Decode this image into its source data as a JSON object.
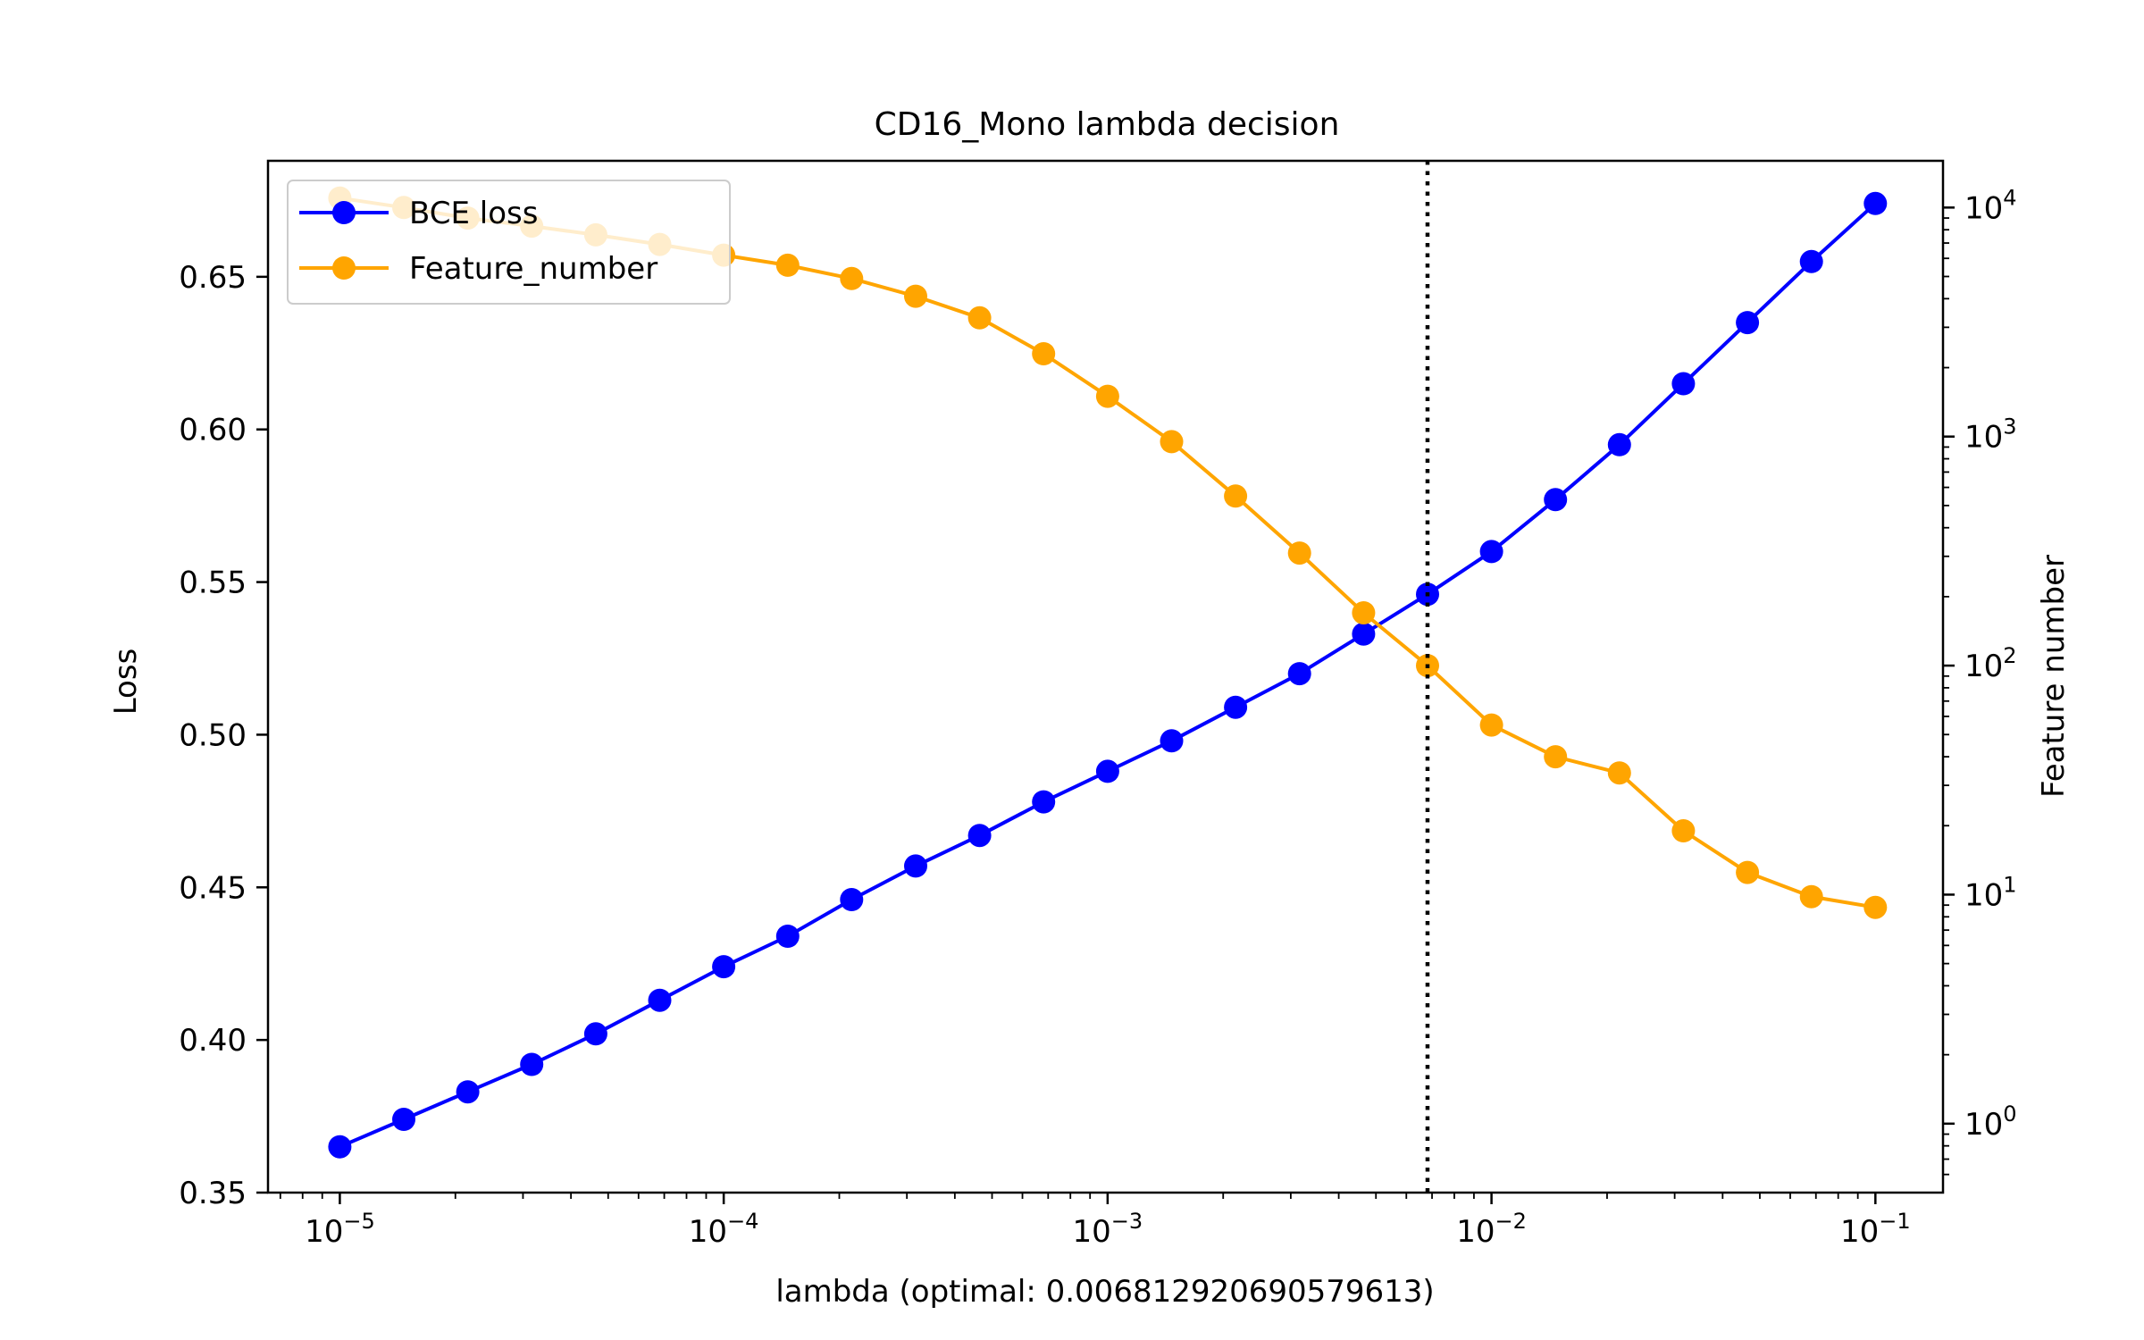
{
  "chart_data": {
    "type": "line",
    "title": "CD16_Mono lambda decision",
    "xlabel": "lambda (optimal: 0.006812920690579613)",
    "ylabel": "Loss",
    "y2label": "Feature number",
    "xscale": "log",
    "y2scale": "log",
    "xlim": [
      6.5e-06,
      0.15
    ],
    "ylim": [
      0.35,
      0.688
    ],
    "y2lim": [
      0.5,
      16000
    ],
    "xticks": [
      1e-05,
      0.0001,
      0.001,
      0.01,
      0.1
    ],
    "xtick_labels": [
      {
        "base": "10",
        "exp": "−5"
      },
      {
        "base": "10",
        "exp": "−4"
      },
      {
        "base": "10",
        "exp": "−3"
      },
      {
        "base": "10",
        "exp": "−2"
      },
      {
        "base": "10",
        "exp": "−1"
      }
    ],
    "yticks": [
      0.35,
      0.4,
      0.45,
      0.5,
      0.55,
      0.6,
      0.65
    ],
    "ytick_labels": [
      "0.35",
      "0.40",
      "0.45",
      "0.50",
      "0.55",
      "0.60",
      "0.65"
    ],
    "y2ticks": [
      1,
      10,
      100,
      1000,
      10000
    ],
    "y2tick_labels": [
      {
        "base": "10",
        "exp": "0"
      },
      {
        "base": "10",
        "exp": "1"
      },
      {
        "base": "10",
        "exp": "2"
      },
      {
        "base": "10",
        "exp": "3"
      },
      {
        "base": "10",
        "exp": "4"
      }
    ],
    "optimal_lambda": 0.006812920690579613,
    "legend_position": "top-left",
    "grid": false,
    "x": [
      1e-05,
      1.468e-05,
      2.154e-05,
      3.162e-05,
      4.642e-05,
      6.813e-05,
      0.0001,
      0.0001468,
      0.0002154,
      0.0003162,
      0.0004642,
      0.0006813,
      0.001,
      0.001468,
      0.002154,
      0.003162,
      0.004642,
      0.006813,
      0.01,
      0.01468,
      0.02154,
      0.03162,
      0.04642,
      0.06813,
      0.1
    ],
    "series": [
      {
        "name": "BCE loss",
        "axis": "left",
        "color": "#0000ff",
        "values": [
          0.365,
          0.374,
          0.383,
          0.392,
          0.402,
          0.413,
          0.424,
          0.434,
          0.446,
          0.457,
          0.467,
          0.478,
          0.488,
          0.498,
          0.509,
          0.52,
          0.533,
          0.546,
          0.56,
          0.577,
          0.595,
          0.615,
          0.635,
          0.655,
          0.674
        ]
      },
      {
        "name": "Feature_number",
        "axis": "right",
        "color": "#ffa500",
        "values": [
          11000,
          10000,
          9000,
          8300,
          7600,
          6900,
          6200,
          5600,
          4900,
          4100,
          3300,
          2300,
          1500,
          950,
          550,
          310,
          170,
          100,
          55,
          40,
          34,
          19,
          12.5,
          9.8,
          8.8
        ]
      }
    ]
  }
}
